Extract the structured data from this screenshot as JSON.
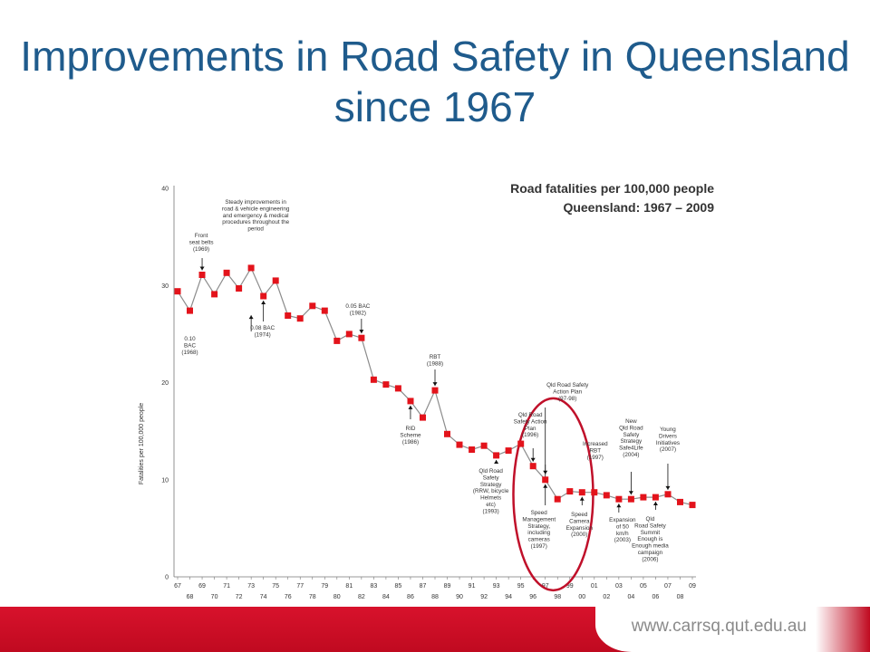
{
  "slide": {
    "title": "Improvements in Road Safety in Queensland since 1967",
    "footer_url": "www.carrsq.qut.edu.au"
  },
  "colors": {
    "title": "#1f5b8c",
    "marker": "#e3131b",
    "line": "#8c8c8c",
    "highlight": "#c0102a",
    "footer": "#d8122c"
  },
  "chart_data": {
    "type": "line",
    "title": "Road fatalities per 100,000 people",
    "subtitle": "Queensland: 1967 – 2009",
    "ylabel": "Fatalities per 100,000 people",
    "xlabel": "",
    "ylim": [
      0,
      40
    ],
    "yticks": [
      0,
      10,
      20,
      30,
      40
    ],
    "x": [
      1967,
      1968,
      1969,
      1970,
      1971,
      1972,
      1973,
      1974,
      1975,
      1976,
      1977,
      1978,
      1979,
      1980,
      1981,
      1982,
      1983,
      1984,
      1985,
      1986,
      1987,
      1988,
      1989,
      1990,
      1991,
      1992,
      1993,
      1994,
      1995,
      1996,
      1997,
      1998,
      1999,
      2000,
      2001,
      2002,
      2003,
      2004,
      2005,
      2006,
      2007,
      2008,
      2009
    ],
    "xtick_labels": [
      "67",
      "68",
      "69",
      "70",
      "71",
      "72",
      "73",
      "74",
      "75",
      "76",
      "77",
      "78",
      "79",
      "80",
      "81",
      "82",
      "83",
      "84",
      "85",
      "86",
      "87",
      "88",
      "89",
      "90",
      "91",
      "92",
      "93",
      "94",
      "95",
      "96",
      "97",
      "98",
      "99",
      "00",
      "01",
      "02",
      "03",
      "04",
      "05",
      "06",
      "07",
      "08",
      "09"
    ],
    "series": [
      {
        "values": [
          29.4,
          27.4,
          31.1,
          29.1,
          31.3,
          29.7,
          31.8,
          28.9,
          30.5,
          26.9,
          26.6,
          27.9,
          27.4,
          24.3,
          25.0,
          24.6,
          20.3,
          19.8,
          19.4,
          18.1,
          16.4,
          19.2,
          14.7,
          13.6,
          13.1,
          13.5,
          12.5,
          13.0,
          13.7,
          11.4,
          10.0,
          8.0,
          8.8,
          8.7,
          8.7,
          8.4,
          8.0,
          8.0,
          8.2,
          8.2,
          8.5,
          7.7,
          7.4
        ]
      }
    ],
    "annotations": [
      {
        "text": "Steady improvements in road & vehicle engineering and emergency & medical procedures throughout the period",
        "year": 1973
      },
      {
        "text": "Front seat belts (1969)",
        "year": 1969
      },
      {
        "text": "0.10 BAC (1968)",
        "year": 1968
      },
      {
        "text": "0.08 BAC (1974)",
        "year": 1974
      },
      {
        "text": "0.05 BAC (1982)",
        "year": 1982
      },
      {
        "text": "RBT (1988)",
        "year": 1988
      },
      {
        "text": "RID Scheme (1986)",
        "year": 1986
      },
      {
        "text": "Qld Road Safety Strategy (RRW, bicycle Helmets etc) (1993)",
        "year": 1993
      },
      {
        "text": "Qld Road Safety Action Plan (1996)",
        "year": 1996
      },
      {
        "text": "Qld Road Safety Action Plan (97-98)",
        "year": 1997
      },
      {
        "text": "Increased RBT (1997)",
        "year": 1997
      },
      {
        "text": "Speed Management Strategy, including cameras (1997)",
        "year": 1997
      },
      {
        "text": "Speed Camera Expansion (2000)",
        "year": 2000
      },
      {
        "text": "Expansion of 50 km/h (2003)",
        "year": 2003
      },
      {
        "text": "New Qld Road Safety Strategy Safe4Life (2004)",
        "year": 2004
      },
      {
        "text": "Qld Road Safety Summit Enough is Enough media campaign (2006)",
        "year": 2006
      },
      {
        "text": "Young Drivers Initiatives (2007)",
        "year": 2007
      }
    ]
  }
}
